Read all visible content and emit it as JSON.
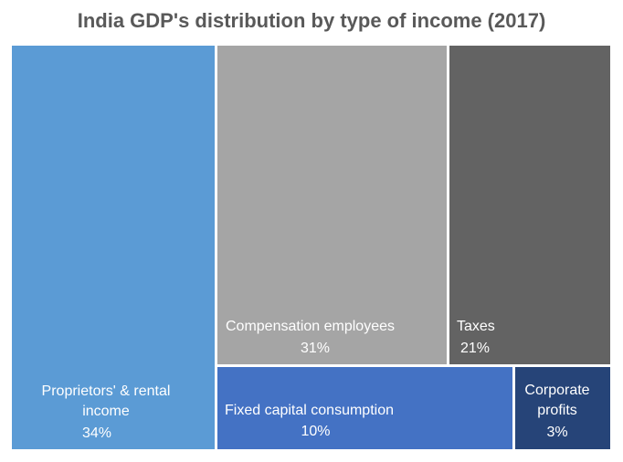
{
  "chart_data": {
    "type": "treemap",
    "title": "India GDP's distribution by type of income (2017)",
    "items": [
      {
        "label": "Proprietors' & rental income",
        "value": 34,
        "value_label": "34%",
        "color": "#5b9bd5"
      },
      {
        "label": "Compensation employees",
        "value": 31,
        "value_label": "31%",
        "color": "#a5a5a5"
      },
      {
        "label": "Taxes",
        "value": 21,
        "value_label": "21%",
        "color": "#636363"
      },
      {
        "label": "Fixed capital consumption",
        "value": 10,
        "value_label": "10%",
        "color": "#4472c4"
      },
      {
        "label": "Corporate profits",
        "value": 3,
        "value_label": "3%",
        "color": "#264478"
      }
    ]
  }
}
